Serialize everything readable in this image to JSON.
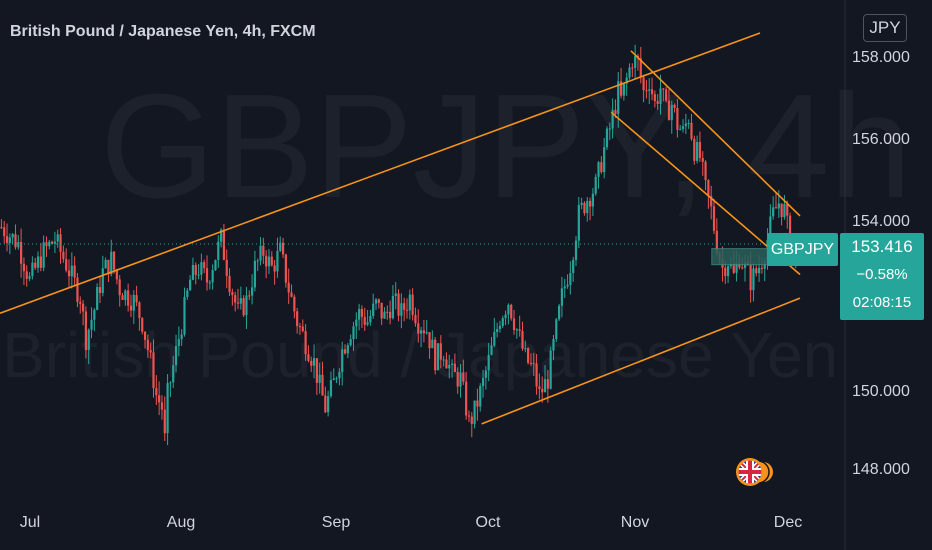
{
  "header": {
    "title": "British Pound / Japanese Yen, 4h, FXCM",
    "currency": "JPY"
  },
  "watermark": {
    "symbol": "GBPJPY, 4h",
    "name": "British Pound / Japanese Yen"
  },
  "last_price": {
    "symbol": "GBPJPY",
    "price": "153.416",
    "change": "−0.58%",
    "countdown": "02:08:15"
  },
  "colors": {
    "background": "#131722",
    "up": "#26a69a",
    "down": "#ef5350",
    "trendline": "#f7931a",
    "zone": "#2a5f5a"
  },
  "icons": [
    "uk-flag-icon"
  ],
  "chart_data": {
    "type": "candlestick",
    "interval": "4h",
    "y_axis": {
      "ticks": [
        "148.000",
        "150.000",
        "154.000",
        "156.000",
        "158.000"
      ],
      "range": [
        147.3,
        159.4
      ],
      "unit": "JPY"
    },
    "x_axis": {
      "ticks": [
        "Jul",
        "Aug",
        "Sep",
        "Oct",
        "Nov",
        "Dec"
      ]
    },
    "grid": false,
    "series": [
      {
        "path": [
          [
            0,
            153.9
          ],
          [
            6,
            153.5
          ],
          [
            10,
            152.6
          ],
          [
            15,
            153.3
          ],
          [
            19,
            153.6
          ],
          [
            23,
            153.0
          ],
          [
            28,
            152.2
          ],
          [
            30,
            151.2
          ],
          [
            33,
            151.9
          ],
          [
            36,
            152.8
          ],
          [
            39,
            153.1
          ],
          [
            42,
            152.4
          ],
          [
            47,
            152.1
          ],
          [
            50,
            151.6
          ],
          [
            53,
            150.6
          ],
          [
            55,
            149.8
          ],
          [
            57,
            149.5
          ],
          [
            58,
            148.7
          ],
          [
            59,
            149.8
          ],
          [
            63,
            151.2
          ],
          [
            67,
            152.6
          ],
          [
            70,
            152.9
          ],
          [
            73,
            152.6
          ],
          [
            76,
            153.2
          ],
          [
            78,
            153.6
          ],
          [
            81,
            152.6
          ],
          [
            84,
            151.8
          ],
          [
            87,
            152.1
          ],
          [
            90,
            152.9
          ],
          [
            93,
            153.3
          ],
          [
            96,
            152.9
          ],
          [
            99,
            153.3
          ],
          [
            102,
            152.4
          ],
          [
            105,
            151.6
          ],
          [
            108,
            151.1
          ],
          [
            111,
            150.6
          ],
          [
            113,
            150.0
          ],
          [
            115,
            149.5
          ],
          [
            118,
            150.1
          ],
          [
            121,
            150.9
          ],
          [
            124,
            151.4
          ],
          [
            127,
            151.8
          ],
          [
            130,
            151.6
          ],
          [
            133,
            152.0
          ],
          [
            136,
            151.7
          ],
          [
            139,
            152.1
          ],
          [
            142,
            151.8
          ],
          [
            145,
            152.2
          ],
          [
            148,
            151.6
          ],
          [
            151,
            151.4
          ],
          [
            154,
            150.7
          ],
          [
            157,
            150.9
          ],
          [
            160,
            150.3
          ],
          [
            163,
            150.2
          ],
          [
            165,
            149.5
          ],
          [
            166,
            149.1
          ],
          [
            168,
            149.4
          ],
          [
            171,
            150.1
          ],
          [
            174,
            150.9
          ],
          [
            177,
            151.7
          ],
          [
            180,
            152.1
          ],
          [
            183,
            151.4
          ],
          [
            186,
            150.7
          ],
          [
            189,
            150.4
          ],
          [
            191,
            149.8
          ],
          [
            194,
            150.2
          ],
          [
            196,
            151.0
          ],
          [
            199,
            152.2
          ],
          [
            202,
            153.0
          ],
          [
            205,
            154.2
          ],
          [
            208,
            154.6
          ],
          [
            211,
            154.9
          ],
          [
            214,
            155.8
          ],
          [
            216,
            156.3
          ],
          [
            218,
            156.9
          ],
          [
            219,
            157.2
          ],
          [
            220,
            157.0
          ],
          [
            222,
            157.5
          ],
          [
            224,
            158.0
          ],
          [
            226,
            157.9
          ],
          [
            228,
            157.2
          ],
          [
            230,
            157.5
          ],
          [
            232,
            156.9
          ],
          [
            234,
            157.3
          ],
          [
            236,
            156.7
          ],
          [
            238,
            156.9
          ],
          [
            240,
            156.4
          ],
          [
            242,
            156.2
          ],
          [
            244,
            156.6
          ],
          [
            246,
            155.8
          ],
          [
            248,
            155.6
          ],
          [
            250,
            154.8
          ],
          [
            252,
            154.3
          ],
          [
            254,
            153.5
          ],
          [
            256,
            152.9
          ],
          [
            258,
            153.1
          ],
          [
            260,
            152.7
          ],
          [
            262,
            153.2
          ],
          [
            264,
            152.9
          ],
          [
            266,
            152.6
          ],
          [
            268,
            152.8
          ],
          [
            270,
            153.1
          ],
          [
            272,
            153.6
          ],
          [
            274,
            154.2
          ],
          [
            276,
            154.5
          ],
          [
            278,
            154.3
          ],
          [
            280,
            153.5
          ],
          [
            281,
            153.2
          ],
          [
            282,
            153.42
          ]
        ]
      }
    ],
    "annotations": {
      "upper_channel": {
        "from": [
          0,
          151.8
        ],
        "to": [
          300,
          159.4
        ]
      },
      "lower_channel": {
        "from": [
          171,
          149.1
        ],
        "to": [
          300,
          152.6
        ]
      },
      "descending_upper": {
        "from": [
          224,
          158.2
        ],
        "to": [
          300,
          153.1
        ]
      },
      "descending_lower": {
        "from": [
          217,
          156.7
        ],
        "to": [
          300,
          151.8
        ]
      },
      "support_zone": {
        "x": [
          252,
          300
        ],
        "y": [
          153.0,
          153.35
        ]
      },
      "last_price_line": 153.416
    }
  }
}
